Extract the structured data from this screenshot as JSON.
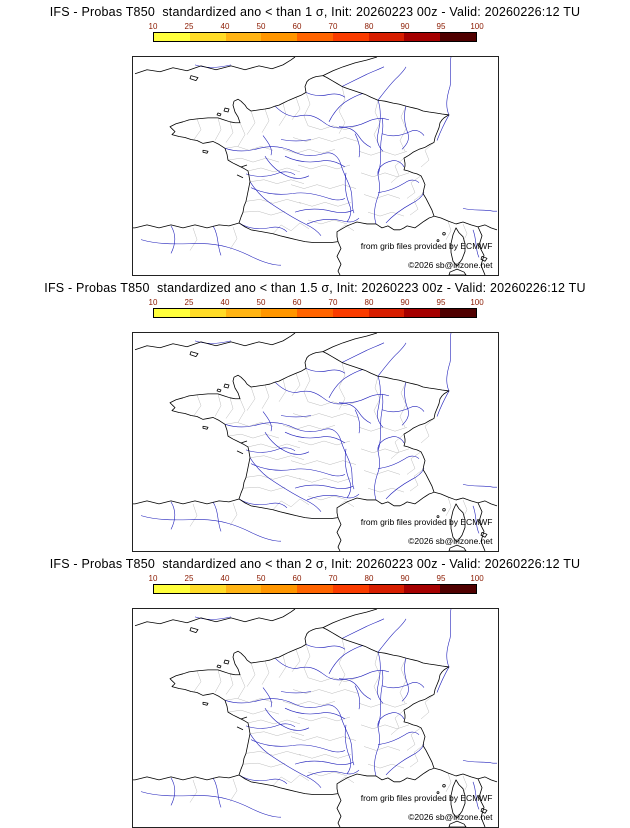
{
  "panels": [
    {
      "title": "IFS - Probas T850  standardized ano < than 1 σ, Init: 20260223 00z - Valid: 20260226:12 TU",
      "credit_line": "from grib files provided by ECMWF",
      "copyright_line": "©2026 sb@irizone.net"
    },
    {
      "title": "IFS - Probas T850  standardized ano < than 1.5 σ, Init: 20260223 00z - Valid: 20260226:12 TU",
      "credit_line": "from grib files provided by ECMWF",
      "copyright_line": "©2026 sb@irizone.net"
    },
    {
      "title": "IFS - Probas T850  standardized ano < than 2 σ, Init: 20260223 00z - Valid: 20260226:12 TU",
      "credit_line": "from grib files provided by ECMWF",
      "copyright_line": "©2026 sb@irizone.net"
    }
  ],
  "colorbar": {
    "ticks": [
      "10",
      "25",
      "40",
      "50",
      "60",
      "70",
      "80",
      "90",
      "95",
      "100"
    ],
    "segment_colors": [
      "#ffff3c",
      "#ffdc28",
      "#ffb414",
      "#ff9600",
      "#ff6400",
      "#fa3c00",
      "#d71e00",
      "#a50000",
      "#500000"
    ],
    "tick_color": "#8b1a00"
  },
  "map": {
    "region_label": "France",
    "coast_color": "#000000",
    "boundary_color": "#b4b4b4",
    "river_color": "#2222bb"
  }
}
